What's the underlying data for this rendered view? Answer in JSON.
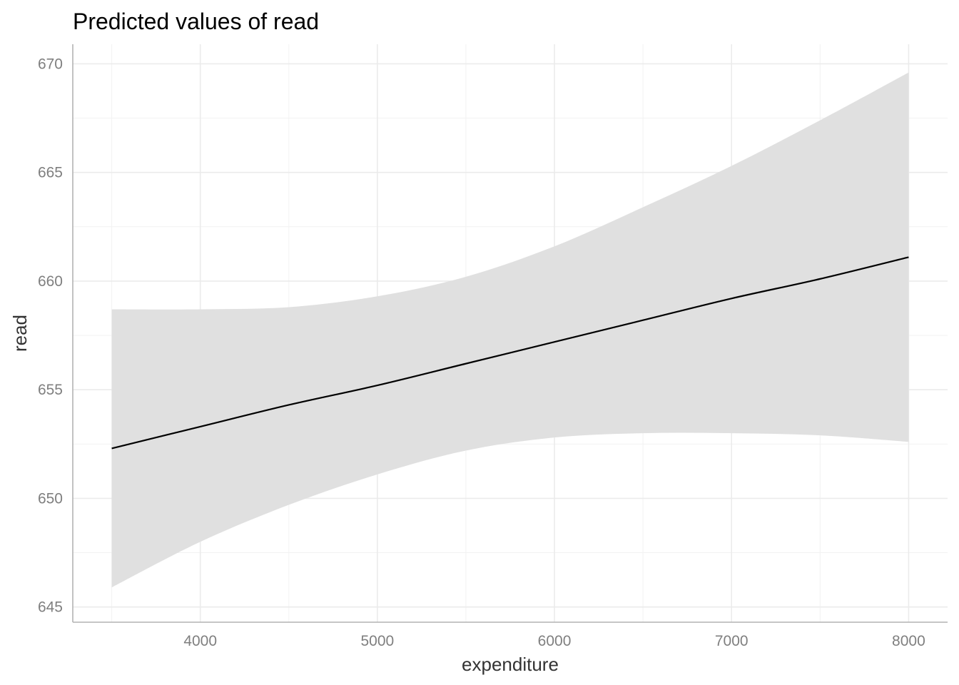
{
  "chart_data": {
    "type": "line",
    "title": "Predicted values of read",
    "xlabel": "expenditure",
    "ylabel": "read",
    "xlim": [
      3280,
      8220
    ],
    "ylim": [
      644.3,
      670.9
    ],
    "x_ticks": [
      4000,
      5000,
      6000,
      7000,
      8000
    ],
    "y_ticks": [
      645,
      650,
      655,
      660,
      665,
      670
    ],
    "grid": true,
    "series": [
      {
        "x": [
          3500,
          4000,
          4500,
          5000,
          5500,
          6000,
          6500,
          7000,
          7500,
          8000
        ],
        "values": [
          652.3,
          653.3,
          654.3,
          655.2,
          656.2,
          657.2,
          658.2,
          659.2,
          660.1,
          661.1
        ],
        "ci_lower": [
          645.9,
          648.0,
          649.7,
          651.1,
          652.2,
          652.8,
          653.0,
          653.0,
          652.9,
          652.6
        ],
        "ci_upper": [
          658.7,
          658.7,
          658.8,
          659.3,
          660.2,
          661.6,
          663.4,
          665.3,
          667.4,
          669.6
        ]
      }
    ],
    "colors": {
      "line": "#000000",
      "ribbon": "#e0e0e0",
      "grid": "#ebebeb",
      "axis_text": "#7f7f7f"
    }
  }
}
